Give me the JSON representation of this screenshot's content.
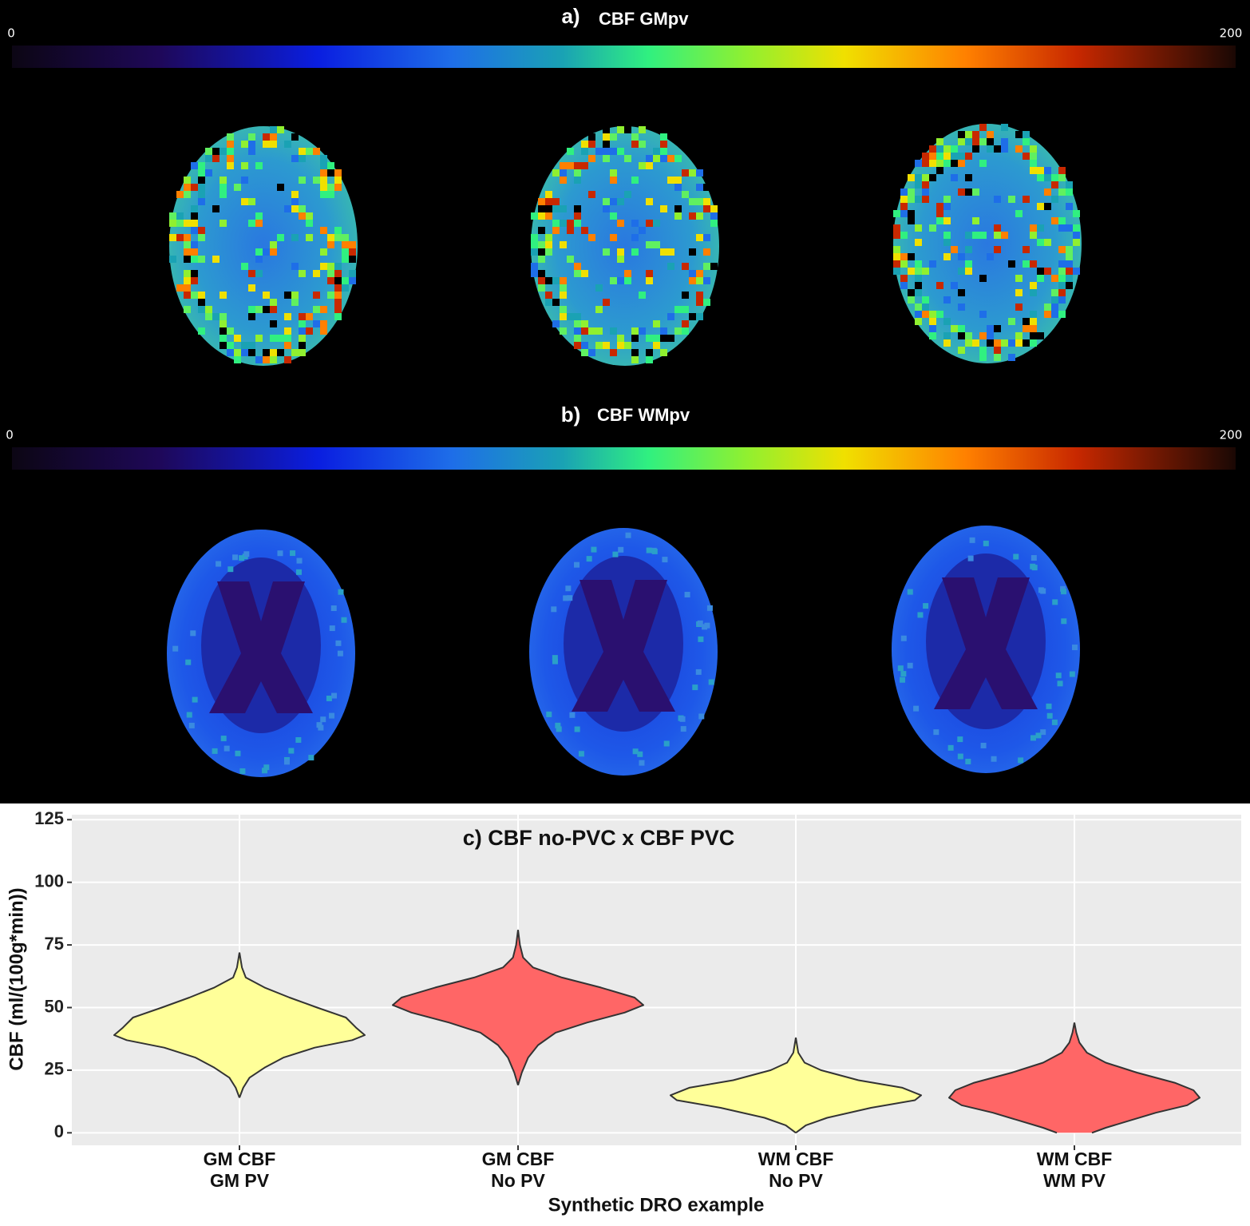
{
  "panels": [
    {
      "label": "a)",
      "title": "CBF GMpv",
      "colorbar": {
        "min": 0,
        "max": 200
      }
    },
    {
      "label": "b)",
      "title": "CBF WMpv",
      "colorbar": {
        "min": 0,
        "max": 200
      }
    }
  ],
  "chart_data": {
    "type": "violin",
    "title": "c) CBF no-PVC x CBF PVC",
    "x_label": "Synthetic DRO example",
    "y_label": "CBF (ml/(100g*min))",
    "categories": [
      [
        "GM CBF",
        "GM PV"
      ],
      [
        "GM CBF",
        "No PV"
      ],
      [
        "WM CBF",
        "No PV"
      ],
      [
        "WM CBF",
        "WM PV"
      ]
    ],
    "ylim": [
      -5,
      127
    ],
    "yticks": [
      0,
      25,
      50,
      75,
      100,
      125
    ],
    "grid": true,
    "violins": [
      {
        "color": "#ffff99",
        "y": [
          14,
          18,
          22,
          26,
          30,
          34,
          37,
          39,
          42,
          46,
          50,
          54,
          58,
          62,
          66,
          72
        ],
        "density": [
          0,
          0.03,
          0.08,
          0.2,
          0.35,
          0.6,
          0.9,
          1,
          0.93,
          0.85,
          0.62,
          0.4,
          0.2,
          0.05,
          0.02,
          0
        ]
      },
      {
        "color": "#ff6666",
        "y": [
          19,
          24,
          30,
          35,
          40,
          44,
          48,
          51,
          54,
          58,
          62,
          66,
          70,
          75,
          81
        ],
        "density": [
          0,
          0.03,
          0.08,
          0.16,
          0.3,
          0.55,
          0.85,
          1,
          0.93,
          0.66,
          0.35,
          0.12,
          0.04,
          0.015,
          0
        ]
      },
      {
        "color": "#ffff99",
        "y": [
          0,
          3,
          6,
          10,
          13,
          15,
          18,
          21,
          25,
          28,
          32,
          38
        ],
        "density": [
          0,
          0.08,
          0.25,
          0.6,
          0.95,
          1,
          0.85,
          0.5,
          0.2,
          0.07,
          0.02,
          0
        ]
      },
      {
        "color": "#ff6666",
        "y": [
          0,
          2,
          5,
          8,
          11,
          14,
          17,
          20,
          24,
          28,
          32,
          36,
          40,
          44
        ],
        "density": [
          0.14,
          0.25,
          0.45,
          0.65,
          0.9,
          1,
          0.95,
          0.8,
          0.5,
          0.25,
          0.1,
          0.04,
          0.015,
          0
        ]
      }
    ]
  }
}
